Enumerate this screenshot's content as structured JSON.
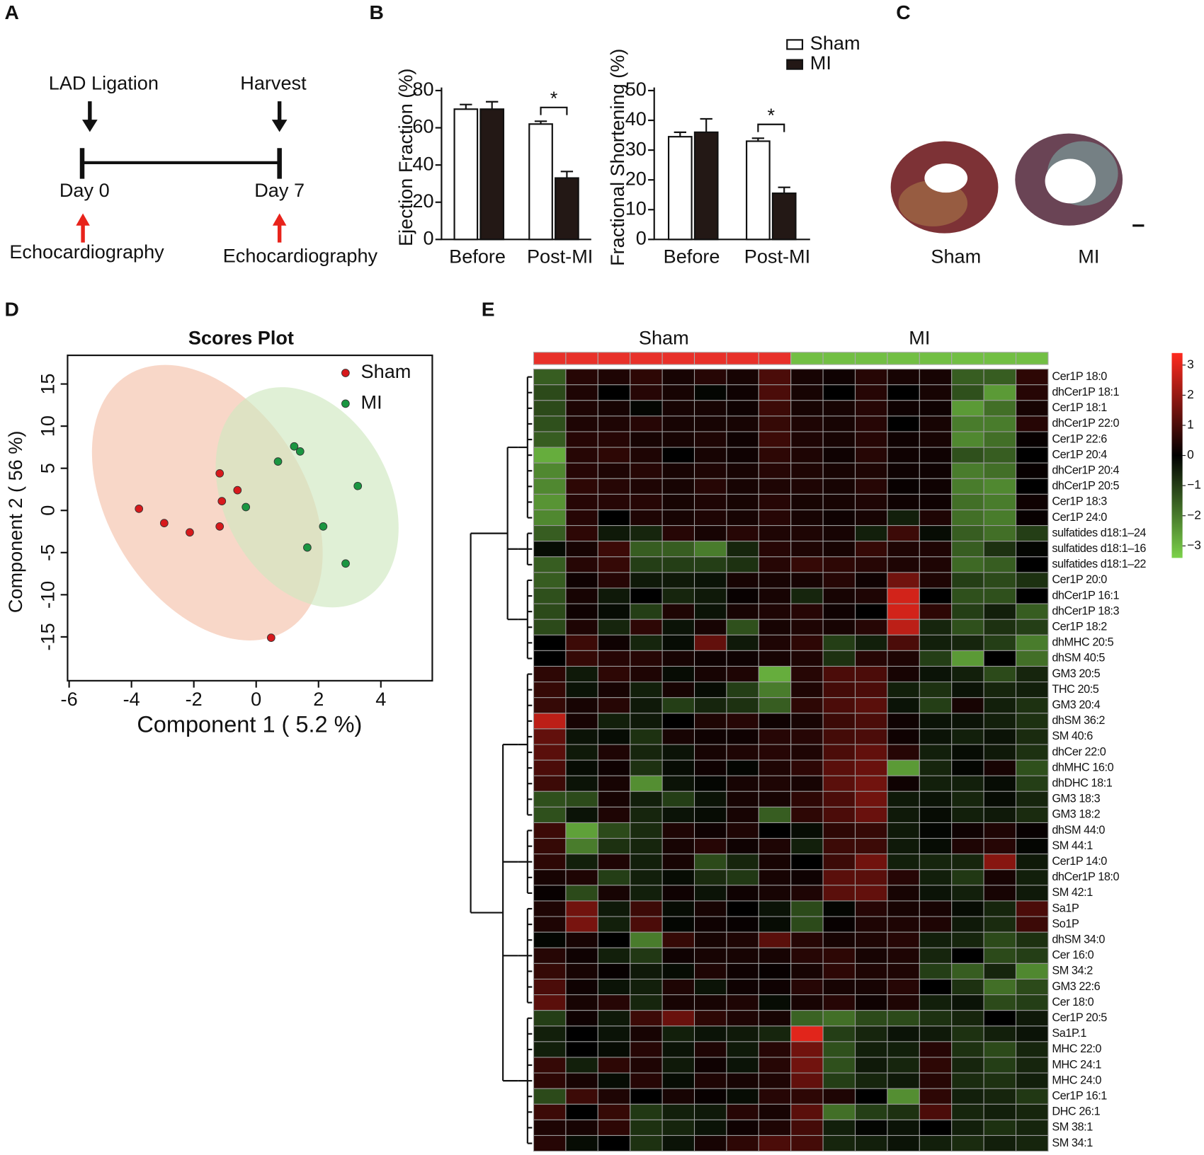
{
  "panel_labels": [
    "A",
    "B",
    "C",
    "D",
    "E"
  ],
  "panel_a": {
    "start_event": "LAD Ligation",
    "end_event": "Harvest",
    "start_day": "Day 0",
    "end_day": "Day 7",
    "measurement": [
      "Echocardiography",
      "Echocardiography"
    ]
  },
  "panel_c": {
    "labels": [
      "Sham",
      "MI"
    ]
  },
  "chart_data": [
    {
      "type": "bar",
      "ylabel": "Ejection Fraction (%)",
      "categories": [
        "Before",
        "Post-MI"
      ],
      "series": [
        {
          "name": "Sham",
          "color": "#ffffff",
          "values": [
            70,
            62
          ],
          "errors": [
            2.5,
            1.5
          ]
        },
        {
          "name": "MI",
          "color": "#231815",
          "values": [
            70,
            33
          ],
          "errors": [
            4,
            3.5
          ]
        }
      ],
      "ylim": [
        0,
        80
      ],
      "yticks": [
        0,
        20,
        40,
        60,
        80
      ],
      "annotation": "*",
      "legend": "top-right"
    },
    {
      "type": "bar",
      "ylabel": "Fractional Shortening (%)",
      "categories": [
        "Before",
        "Post-MI"
      ],
      "series": [
        {
          "color": "#ffffff",
          "values": [
            34.5,
            33
          ],
          "errors": [
            1.5,
            1
          ]
        },
        {
          "color": "#231815",
          "values": [
            36,
            15.5
          ],
          "errors": [
            4.5,
            2
          ]
        }
      ],
      "ylim": [
        0,
        50
      ],
      "yticks": [
        0,
        10,
        20,
        30,
        40,
        50
      ],
      "annotation": "*"
    },
    {
      "type": "scatter",
      "title": "Scores Plot",
      "xlabel": "Component 1 ( 5.2 %)",
      "ylabel": "Component 2 ( 56 %)",
      "series": [
        {
          "name": "Sham",
          "color": "#d7191c",
          "x": [
            -3.76,
            -2.95,
            -2.13,
            -1.17,
            -1.1,
            -1.17,
            -0.6,
            0.48
          ],
          "values": [
            0.2,
            -1.5,
            -2.6,
            -1.9,
            1.1,
            4.4,
            2.4,
            -15.1
          ]
        },
        {
          "name": "MI",
          "color": "#1a9641",
          "x": [
            -0.33,
            0.7,
            1.22,
            1.41,
            3.26,
            2.15,
            1.64,
            2.87
          ],
          "values": [
            0.4,
            5.8,
            7.6,
            7.0,
            2.9,
            -1.9,
            -4.4,
            -6.3
          ]
        }
      ],
      "xlim": [
        -6.05,
        5.65
      ],
      "xticks": [
        -6,
        -4,
        -2,
        0,
        2,
        4
      ],
      "ylim": [
        -20.2,
        18.4
      ],
      "yticks": [
        15,
        10,
        5,
        0,
        -5,
        -10,
        -15
      ],
      "legend": "top-right"
    },
    {
      "type": "heatmap",
      "groups": [
        {
          "name": "Sham",
          "color": "#e8312a",
          "count": 8
        },
        {
          "name": "MI",
          "color": "#72bf44",
          "count": 8
        }
      ],
      "rows": [
        "Cer1P 18:0",
        "dhCer1P 18:1",
        "Cer1P 18:1",
        "dhCer1P 22:0",
        "Cer1P 22:6",
        "Cer1P 20:4",
        "dhCer1P 20:4",
        "dhCer1P 20:5",
        "Cer1P 18:3",
        "Cer1P 24:0",
        "sulfatides d18:1–24",
        "sulfatides d18:1–16",
        "sulfatides d18:1–22",
        "Cer1P 20:0",
        "dhCer1P 16:1",
        "dhCer1P 18:3",
        "Cer1P 18:2",
        "dhMHC 20:5",
        "dhSM 40:5",
        "GM3 20:5",
        "THC 20:5",
        "GM3 20:4",
        "dhSM 36:2",
        "SM 40:6",
        "dhCer 22:0",
        "dhMHC 16:0",
        "dhDHC 18:1",
        "GM3 18:3",
        "GM3 18:2",
        "dhSM 44:0",
        "SM 44:1",
        "Cer1P 14:0",
        "dhCer1P 18:0",
        "SM 42:1",
        "Sa1P",
        "So1P",
        "dhSM 34:0",
        "Cer 16:0",
        "SM 34:2",
        "GM3 22:6",
        "Cer 18:0",
        "Cer1P 20:5",
        "Sa1P.1",
        "MHC 22:0",
        "MHC 24:1",
        "MHC 24:0",
        "Cer1P 16:1",
        "DHC 26:1",
        "SM 38:1",
        "SM 34:1"
      ],
      "values": [
        [
          -1.5,
          0.5,
          0.4,
          0.6,
          0.3,
          0.5,
          0.3,
          1,
          0.3,
          0.2,
          0.5,
          0.3,
          0.3,
          -1.5,
          -1.5,
          0.6
        ],
        [
          -1.2,
          0.4,
          0,
          0.5,
          0.3,
          -0.1,
          0.2,
          1,
          0.3,
          0,
          0.5,
          0,
          0.3,
          -1.3,
          -2.5,
          0.5
        ],
        [
          -1.2,
          0.4,
          0.3,
          -0.1,
          0.3,
          0.3,
          0.2,
          0.8,
          0.3,
          0.3,
          0.5,
          0.2,
          0.2,
          -2.5,
          -1.8,
          0.3
        ],
        [
          -1.3,
          0.4,
          0.4,
          0.5,
          0.3,
          0.3,
          0.3,
          0.7,
          0.4,
          0.3,
          0.5,
          0,
          0.3,
          -2,
          -2,
          0.5
        ],
        [
          -1.5,
          0.5,
          0.5,
          0.3,
          0.3,
          0.4,
          0.2,
          0.8,
          0.4,
          0.3,
          0.5,
          0.2,
          0.3,
          -2.2,
          -1.8,
          0.1
        ],
        [
          -2.8,
          0.5,
          0.6,
          0.4,
          0,
          0.3,
          0.2,
          0.6,
          0.4,
          0.2,
          0.5,
          0.2,
          0.2,
          -1.3,
          -1.5,
          0
        ],
        [
          -2.2,
          0.5,
          0.4,
          0.5,
          0.3,
          0.4,
          0.3,
          0.5,
          0.4,
          0.3,
          0.4,
          0.2,
          0.2,
          -2,
          -1.8,
          0.1
        ],
        [
          -2.2,
          0.6,
          0.5,
          0.4,
          0.3,
          0.5,
          0.3,
          0.4,
          0.4,
          0.3,
          0.5,
          0.1,
          0.2,
          -2,
          -2.2,
          0
        ],
        [
          -2.4,
          0.5,
          0.5,
          0.5,
          0.3,
          0.4,
          0.3,
          0.5,
          0.3,
          0.3,
          0.4,
          0.2,
          0.2,
          -1.8,
          -2,
          0.2
        ],
        [
          -2.2,
          0.5,
          0,
          0.4,
          0.3,
          0.4,
          0.3,
          0.5,
          0.3,
          0.2,
          0.3,
          -0.5,
          0.4,
          -1.8,
          -2,
          0.1
        ],
        [
          -1.5,
          0.6,
          -0.4,
          -0.6,
          0.5,
          0.3,
          0.5,
          0.4,
          0.4,
          0.3,
          -0.5,
          0.8,
          -0.2,
          -1.5,
          -1.8,
          -1
        ],
        [
          -0.2,
          0.3,
          0.8,
          -1.5,
          -1.5,
          -2,
          -0.6,
          0.5,
          0.4,
          0.3,
          0.7,
          0.4,
          0.4,
          -1.5,
          -0.8,
          -0.1
        ],
        [
          -1.5,
          0.5,
          0.7,
          -1,
          -1,
          -1,
          -0.8,
          0.5,
          0.7,
          0.6,
          0.5,
          0.4,
          0.4,
          -1.7,
          -1.5,
          0
        ],
        [
          -1.5,
          0.2,
          0.5,
          -0.4,
          -0.4,
          -0.3,
          0.3,
          0.3,
          0.3,
          0.5,
          0.2,
          1.5,
          0.4,
          -1,
          -1.2,
          -0.8
        ],
        [
          -1.3,
          0.3,
          -0.4,
          0,
          -0.6,
          -0.4,
          0.1,
          0.3,
          -0.6,
          0.3,
          0.4,
          2.8,
          0,
          -1.3,
          -1.3,
          0
        ],
        [
          -1.2,
          0.2,
          -0.2,
          -1,
          0.4,
          -0.3,
          0.3,
          0.4,
          0.5,
          0.2,
          0,
          2.8,
          0.6,
          -1,
          -0.5,
          -1.5
        ],
        [
          -1.2,
          0.4,
          -0.6,
          0.6,
          -0.3,
          0.3,
          -1.3,
          0.3,
          0.4,
          0.3,
          0.5,
          2.5,
          -0.6,
          -1.3,
          -0.8,
          -1
        ],
        [
          0,
          0.8,
          0.2,
          -0.6,
          -0.2,
          1.3,
          -0.4,
          0.4,
          0.6,
          -1,
          -0.5,
          1,
          -0.5,
          -0.6,
          -1,
          -2
        ],
        [
          0,
          0.7,
          0.5,
          0.5,
          0.3,
          0.2,
          0.2,
          0.3,
          0.4,
          -0.8,
          0.5,
          0.4,
          -1,
          -2.5,
          0,
          -1.8
        ],
        [
          0.6,
          -0.4,
          0.6,
          0.4,
          -0.2,
          0.3,
          0.4,
          -2.8,
          0.5,
          1,
          1,
          0.3,
          -0.3,
          -0.5,
          -1.2,
          -0.6
        ],
        [
          0.7,
          -0.3,
          0.3,
          -0.5,
          0.3,
          -0.2,
          -1,
          -2,
          0.4,
          0.9,
          1,
          -0.5,
          -0.8,
          -0.3,
          -0.6,
          -0.5
        ],
        [
          0.7,
          0.3,
          0.5,
          -0.4,
          -1,
          -0.6,
          -0.8,
          -1.5,
          0.6,
          1,
          1.2,
          -0.3,
          -1,
          0.3,
          -0.5,
          -0.8
        ],
        [
          2.5,
          0.3,
          -0.5,
          -0.4,
          0,
          0.4,
          0.5,
          0.2,
          0.3,
          0.8,
          1,
          0.2,
          -0.3,
          -0.3,
          -0.5,
          -0.8
        ],
        [
          1.3,
          -0.3,
          -0.2,
          -0.8,
          0.3,
          0.2,
          0.2,
          0.5,
          0.5,
          0.9,
          1,
          0.2,
          -0.3,
          -0.5,
          -0.3,
          -0.7
        ],
        [
          1.2,
          -0.4,
          0.4,
          -0.6,
          -0.3,
          0.3,
          0.4,
          0.5,
          0.4,
          1,
          1.3,
          0.5,
          -0.5,
          -0.2,
          -0.4,
          -0.8
        ],
        [
          1,
          -0.2,
          0.2,
          -0.8,
          -0.2,
          0.2,
          -0.1,
          0.4,
          0.6,
          1.2,
          1.4,
          -2.5,
          -0.6,
          -0.1,
          0.3,
          -1.3
        ],
        [
          0.8,
          -0.3,
          0.3,
          -2.3,
          -0.3,
          -0.1,
          0.3,
          0.4,
          0.3,
          1.2,
          1.5,
          0.2,
          -0.5,
          -0.5,
          -0.2,
          -1
        ],
        [
          -1.3,
          -1.2,
          0.3,
          -0.5,
          -1,
          -0.3,
          0.3,
          0.3,
          0.6,
          1,
          1.5,
          -0.4,
          -0.3,
          -0.6,
          -0.2,
          -0.6
        ],
        [
          -1.3,
          -0.3,
          0.4,
          -0.6,
          -0.3,
          -0.2,
          0.3,
          -1.5,
          0.6,
          1,
          1.4,
          -0.4,
          -0.2,
          -0.5,
          -0.4,
          -0.7
        ],
        [
          0.8,
          -2.6,
          -1.2,
          -0.7,
          0.4,
          0.2,
          0.4,
          0,
          -0.2,
          0.6,
          0.7,
          -0.4,
          -0.1,
          0.2,
          0.4,
          0.1
        ],
        [
          0.7,
          -2,
          -0.8,
          -0.6,
          0.3,
          0.5,
          0.2,
          0.4,
          -0.5,
          0.8,
          0.8,
          -0.4,
          -0.2,
          0.4,
          0.5,
          -0.1
        ],
        [
          0.6,
          -0.5,
          0.4,
          -0.5,
          0.3,
          -1.2,
          -0.6,
          0.3,
          0,
          0.8,
          1.5,
          -0.5,
          -0.6,
          -0.6,
          1.8,
          -0.4
        ],
        [
          0.3,
          0.4,
          -1,
          -0.5,
          -0.2,
          -0.7,
          -0.9,
          0.3,
          0.2,
          1.2,
          1.2,
          0.5,
          -0.5,
          -0.9,
          0.3,
          -0.5
        ],
        [
          0.1,
          -1.2,
          0.3,
          -0.5,
          0.2,
          -0.3,
          0.2,
          0.3,
          0.4,
          1.2,
          1.3,
          0.3,
          -0.3,
          -0.5,
          0.3,
          -0.4
        ],
        [
          0.4,
          1.5,
          -0.4,
          0.8,
          -0.2,
          0.3,
          0,
          -0.3,
          -1.2,
          -0.1,
          0.5,
          0.3,
          0.3,
          -0.2,
          -0.6,
          1
        ],
        [
          0.4,
          1.6,
          -0.5,
          1,
          -0.1,
          0.2,
          0.1,
          -0.2,
          -1.2,
          0.1,
          0.4,
          0.4,
          0.4,
          -0.4,
          -0.7,
          0.8
        ],
        [
          -0.1,
          0.3,
          0,
          -2,
          0.7,
          0.3,
          0.4,
          1.2,
          0.5,
          0.3,
          0.4,
          0.5,
          -0.5,
          -0.6,
          -1.2,
          -0.8
        ],
        [
          0.5,
          0.2,
          -0.5,
          -0.9,
          0.2,
          0.3,
          0.3,
          0.3,
          0.5,
          0.6,
          0.3,
          0.4,
          -0.6,
          0,
          -1.2,
          -1
        ],
        [
          0.7,
          0.3,
          0.1,
          -0.4,
          -0.2,
          0.4,
          0.2,
          0.1,
          0.3,
          0.6,
          0.4,
          0.4,
          -1,
          -1.5,
          -0.6,
          -2.2
        ],
        [
          1,
          0.2,
          -0.3,
          -0.5,
          0.4,
          -0.3,
          0.2,
          0.2,
          0.5,
          0.3,
          0.3,
          0.5,
          0,
          -0.8,
          -1.8,
          -1.2
        ],
        [
          1.2,
          0.3,
          0.5,
          -0.6,
          0.3,
          0.3,
          0.4,
          -0.2,
          0.3,
          0.5,
          0.2,
          0.4,
          -0.5,
          -0.3,
          -1.2,
          -1
        ],
        [
          -1,
          0.2,
          -0.4,
          0.8,
          1.4,
          0.6,
          0.4,
          0.3,
          -1.6,
          -1.8,
          -1.2,
          -1.2,
          -0.8,
          -0.6,
          0,
          -0.4
        ],
        [
          -0.5,
          0,
          -0.3,
          0.3,
          -0.5,
          -0.3,
          -0.4,
          -0.6,
          3,
          -1,
          -0.6,
          -0.3,
          -0.4,
          -0.8,
          -0.5,
          -0.3
        ],
        [
          -0.5,
          0,
          -0.2,
          0.5,
          -0.3,
          0.4,
          -0.4,
          0.5,
          1.5,
          -1.3,
          -0.5,
          -0.5,
          0.5,
          -0.8,
          -1.2,
          -0.6
        ],
        [
          0.7,
          -0.5,
          0.6,
          0.4,
          -0.4,
          0.2,
          -0.3,
          0.5,
          1.5,
          -1.3,
          -0.4,
          -0.6,
          0.6,
          -0.6,
          -1,
          -0.6
        ],
        [
          0.6,
          0.3,
          -0.2,
          0.5,
          -0.2,
          0.4,
          0.3,
          0.4,
          1.3,
          -1,
          -0.6,
          -0.4,
          0.5,
          -0.7,
          -0.8,
          -0.5
        ],
        [
          -1.2,
          0.8,
          0.4,
          0,
          0.3,
          0.1,
          -0.2,
          0.5,
          0.6,
          0.4,
          0,
          -2.3,
          0.6,
          -0.5,
          -0.6,
          -0.9
        ],
        [
          0.8,
          0,
          0.7,
          -0.9,
          -0.5,
          -0.4,
          0.5,
          0.3,
          1.2,
          -1.8,
          -1,
          -0.8,
          1,
          -0.6,
          -0.5,
          -0.6
        ],
        [
          0.4,
          0.3,
          0.6,
          -0.8,
          -0.6,
          -0.3,
          0.2,
          0.4,
          0.9,
          -0.5,
          -0.1,
          -0.3,
          0,
          -0.5,
          -0.8,
          -0.6
        ],
        [
          0.5,
          -0.2,
          0,
          -0.8,
          -0.3,
          0.3,
          0.6,
          1,
          0.9,
          -0.6,
          -0.5,
          -0.3,
          -0.5,
          -0.7,
          -0.5,
          -0.6
        ]
      ],
      "clim": [
        -3.4,
        3.4
      ],
      "cticks": [
        3,
        2,
        1,
        0,
        {
          "value": -1,
          "label": "−1"
        },
        {
          "value": -2,
          "label": "−2"
        },
        {
          "value": -3,
          "label": "−3"
        }
      ],
      "colors": {
        "low": "#7cd24a",
        "mid": "#000000",
        "high": "#ff2a1f"
      }
    }
  ]
}
